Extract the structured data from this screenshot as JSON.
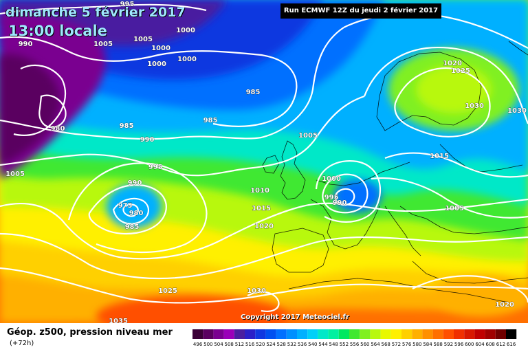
{
  "title": {
    "date": "dimanche 5 février 2017",
    "time": "13:00 locale"
  },
  "run_info": "Run ECMWF 12Z du jeudi 2 février 2017",
  "copyright": "Copyright 2017 Meteociel.fr",
  "footer": {
    "parameter": "Géop. z500, pression niveau mer",
    "lead_time": "(+72h)"
  },
  "legend": {
    "values": [
      "496",
      "500",
      "504",
      "508",
      "512",
      "516",
      "520",
      "524",
      "528",
      "532",
      "536",
      "540",
      "544",
      "548",
      "552",
      "556",
      "560",
      "564",
      "568",
      "572",
      "576",
      "580",
      "584",
      "588",
      "592",
      "596",
      "600",
      "604",
      "608",
      "612",
      "616"
    ],
    "colors": [
      "#3a0036",
      "#5a0060",
      "#7a0090",
      "#9a00b8",
      "#4a1ea0",
      "#2a20c8",
      "#1038e0",
      "#0050f0",
      "#0070ff",
      "#0090ff",
      "#00b0ff",
      "#00d0f8",
      "#00e8c8",
      "#00f0a0",
      "#00e860",
      "#40e830",
      "#80f020",
      "#b8f810",
      "#e8f800",
      "#fff000",
      "#ffd000",
      "#ffb000",
      "#ff9000",
      "#ff7000",
      "#ff5000",
      "#f03000",
      "#d81800",
      "#c00000",
      "#a00000",
      "#700000",
      "#000000"
    ]
  },
  "isobars": [
    {
      "label": "995"
    },
    {
      "label": "990"
    },
    {
      "label": "1005"
    },
    {
      "label": "1000"
    },
    {
      "label": "1005"
    },
    {
      "label": "1000"
    },
    {
      "label": "1000"
    },
    {
      "label": "1000"
    },
    {
      "label": "985"
    },
    {
      "label": "985"
    },
    {
      "label": "985"
    },
    {
      "label": "980"
    },
    {
      "label": "990"
    },
    {
      "label": "995"
    },
    {
      "label": "1005"
    },
    {
      "label": "990"
    },
    {
      "label": "975"
    },
    {
      "label": "980"
    },
    {
      "label": "985"
    },
    {
      "label": "1000"
    },
    {
      "label": "995"
    },
    {
      "label": "990"
    },
    {
      "label": "1005"
    },
    {
      "label": "1010"
    },
    {
      "label": "1015"
    },
    {
      "label": "1020"
    },
    {
      "label": "1020"
    },
    {
      "label": "1025"
    },
    {
      "label": "1030"
    },
    {
      "label": "1030"
    },
    {
      "label": "1015"
    },
    {
      "label": "1005"
    },
    {
      "label": "1025"
    },
    {
      "label": "1030"
    },
    {
      "label": "1020"
    },
    {
      "label": "1035"
    }
  ]
}
